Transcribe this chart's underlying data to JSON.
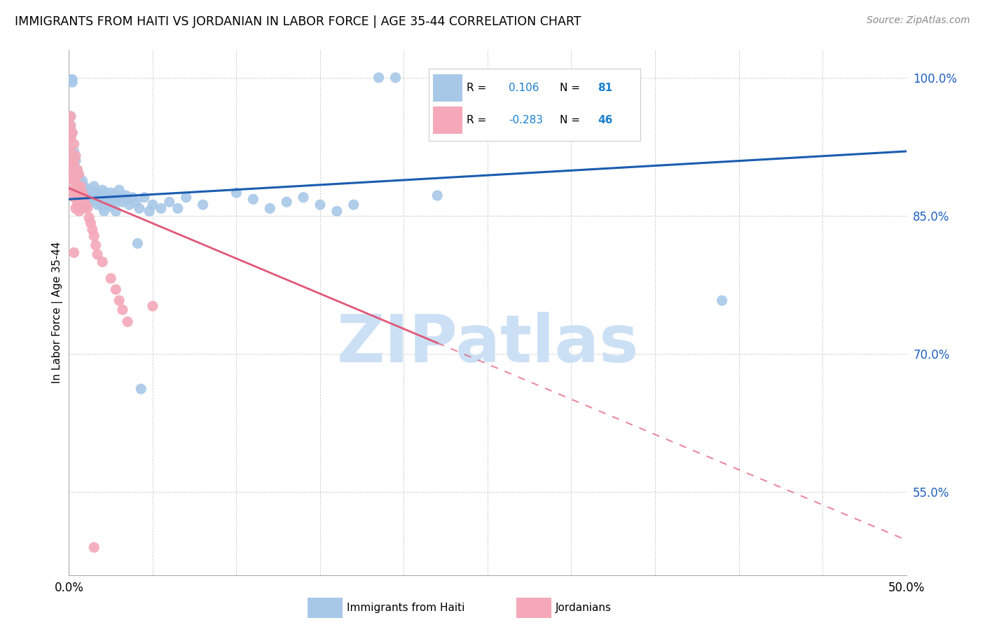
{
  "title": "IMMIGRANTS FROM HAITI VS JORDANIAN IN LABOR FORCE | AGE 35-44 CORRELATION CHART",
  "source": "Source: ZipAtlas.com",
  "ylabel": "In Labor Force | Age 35-44",
  "xlim": [
    0.0,
    0.5
  ],
  "ylim": [
    0.46,
    1.03
  ],
  "yticks": [
    0.55,
    0.7,
    0.85,
    1.0
  ],
  "ytick_labels": [
    "55.0%",
    "70.0%",
    "85.0%",
    "100.0%"
  ],
  "xticks": [
    0.0,
    0.05,
    0.1,
    0.15,
    0.2,
    0.25,
    0.3,
    0.35,
    0.4,
    0.45,
    0.5
  ],
  "xtick_labels": [
    "0.0%",
    "",
    "",
    "",
    "",
    "",
    "",
    "",
    "",
    "",
    "50.0%"
  ],
  "haiti_color": "#a8c8e8",
  "jordan_color": "#f4a8b8",
  "haiti_line_color": "#1a5cb0",
  "jordan_line_color": "#e05878",
  "watermark": "ZIPatlas",
  "watermark_color": "#cce0f5",
  "legend_R_haiti": "0.106",
  "legend_N_haiti": "81",
  "legend_R_jordan": "-0.283",
  "legend_N_jordan": "46",
  "haiti_line_x0": 0.0,
  "haiti_line_y0": 0.868,
  "haiti_line_x1": 0.5,
  "haiti_line_y1": 0.92,
  "jordan_line_x0": 0.0,
  "jordan_line_y0": 0.88,
  "jordan_line_x1": 0.5,
  "jordan_line_y1": 0.498,
  "haiti_scatter": [
    [
      0.001,
      0.998
    ],
    [
      0.002,
      0.995
    ],
    [
      0.002,
      0.998
    ],
    [
      0.185,
      1.0
    ],
    [
      0.195,
      1.0
    ],
    [
      0.001,
      0.958
    ],
    [
      0.001,
      0.948
    ],
    [
      0.001,
      0.935
    ],
    [
      0.002,
      0.94
    ],
    [
      0.002,
      0.912
    ],
    [
      0.003,
      0.92
    ],
    [
      0.003,
      0.905
    ],
    [
      0.004,
      0.91
    ],
    [
      0.004,
      0.895
    ],
    [
      0.005,
      0.9
    ],
    [
      0.005,
      0.888
    ],
    [
      0.006,
      0.892
    ],
    [
      0.006,
      0.88
    ],
    [
      0.007,
      0.885
    ],
    [
      0.007,
      0.875
    ],
    [
      0.008,
      0.888
    ],
    [
      0.008,
      0.878
    ],
    [
      0.009,
      0.882
    ],
    [
      0.009,
      0.87
    ],
    [
      0.01,
      0.878
    ],
    [
      0.01,
      0.868
    ],
    [
      0.011,
      0.875
    ],
    [
      0.011,
      0.862
    ],
    [
      0.012,
      0.872
    ],
    [
      0.013,
      0.878
    ],
    [
      0.013,
      0.865
    ],
    [
      0.014,
      0.875
    ],
    [
      0.015,
      0.87
    ],
    [
      0.015,
      0.882
    ],
    [
      0.016,
      0.868
    ],
    [
      0.017,
      0.875
    ],
    [
      0.017,
      0.862
    ],
    [
      0.018,
      0.87
    ],
    [
      0.019,
      0.865
    ],
    [
      0.02,
      0.878
    ],
    [
      0.02,
      0.86
    ],
    [
      0.021,
      0.855
    ],
    [
      0.022,
      0.875
    ],
    [
      0.022,
      0.865
    ],
    [
      0.023,
      0.87
    ],
    [
      0.024,
      0.862
    ],
    [
      0.025,
      0.875
    ],
    [
      0.025,
      0.86
    ],
    [
      0.026,
      0.868
    ],
    [
      0.027,
      0.872
    ],
    [
      0.028,
      0.865
    ],
    [
      0.028,
      0.855
    ],
    [
      0.03,
      0.87
    ],
    [
      0.03,
      0.878
    ],
    [
      0.032,
      0.865
    ],
    [
      0.034,
      0.872
    ],
    [
      0.035,
      0.868
    ],
    [
      0.036,
      0.862
    ],
    [
      0.038,
      0.87
    ],
    [
      0.04,
      0.865
    ],
    [
      0.042,
      0.858
    ],
    [
      0.045,
      0.87
    ],
    [
      0.048,
      0.855
    ],
    [
      0.05,
      0.862
    ],
    [
      0.055,
      0.858
    ],
    [
      0.06,
      0.865
    ],
    [
      0.065,
      0.858
    ],
    [
      0.07,
      0.87
    ],
    [
      0.08,
      0.862
    ],
    [
      0.1,
      0.875
    ],
    [
      0.11,
      0.868
    ],
    [
      0.12,
      0.858
    ],
    [
      0.13,
      0.865
    ],
    [
      0.14,
      0.87
    ],
    [
      0.15,
      0.862
    ],
    [
      0.16,
      0.855
    ],
    [
      0.17,
      0.862
    ],
    [
      0.22,
      0.872
    ],
    [
      0.39,
      0.758
    ],
    [
      0.043,
      0.662
    ],
    [
      0.041,
      0.82
    ]
  ],
  "jordan_scatter": [
    [
      0.001,
      0.958
    ],
    [
      0.001,
      0.948
    ],
    [
      0.001,
      0.935
    ],
    [
      0.001,
      0.92
    ],
    [
      0.001,
      0.905
    ],
    [
      0.001,
      0.89
    ],
    [
      0.002,
      0.94
    ],
    [
      0.002,
      0.912
    ],
    [
      0.002,
      0.895
    ],
    [
      0.002,
      0.878
    ],
    [
      0.003,
      0.928
    ],
    [
      0.003,
      0.908
    ],
    [
      0.003,
      0.888
    ],
    [
      0.003,
      0.87
    ],
    [
      0.004,
      0.915
    ],
    [
      0.004,
      0.892
    ],
    [
      0.004,
      0.875
    ],
    [
      0.004,
      0.858
    ],
    [
      0.005,
      0.9
    ],
    [
      0.005,
      0.882
    ],
    [
      0.005,
      0.862
    ],
    [
      0.006,
      0.895
    ],
    [
      0.006,
      0.872
    ],
    [
      0.006,
      0.855
    ],
    [
      0.007,
      0.882
    ],
    [
      0.007,
      0.865
    ],
    [
      0.008,
      0.875
    ],
    [
      0.008,
      0.858
    ],
    [
      0.009,
      0.87
    ],
    [
      0.01,
      0.862
    ],
    [
      0.011,
      0.858
    ],
    [
      0.012,
      0.848
    ],
    [
      0.013,
      0.842
    ],
    [
      0.014,
      0.835
    ],
    [
      0.015,
      0.828
    ],
    [
      0.016,
      0.818
    ],
    [
      0.017,
      0.808
    ],
    [
      0.02,
      0.8
    ],
    [
      0.025,
      0.782
    ],
    [
      0.028,
      0.77
    ],
    [
      0.03,
      0.758
    ],
    [
      0.032,
      0.748
    ],
    [
      0.035,
      0.735
    ],
    [
      0.05,
      0.752
    ],
    [
      0.015,
      0.49
    ],
    [
      0.003,
      0.81
    ]
  ]
}
